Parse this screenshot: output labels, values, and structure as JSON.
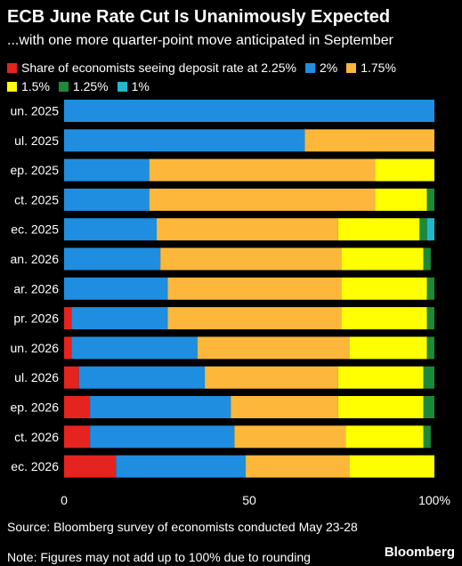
{
  "title": "ECB June Rate Cut Is Unanimously Expected",
  "subtitle": "...with one more quarter-point move anticipated in September",
  "legend": [
    {
      "label": "Share of economists seeing deposit rate at 2.25%",
      "color": "#e5231f"
    },
    {
      "label": "2%",
      "color": "#1f8ee0"
    },
    {
      "label": "1.75%",
      "color": "#fdb73a"
    },
    {
      "label": "1.5%",
      "color": "#ffff00"
    },
    {
      "label": "1.25%",
      "color": "#1c8a3a"
    },
    {
      "label": "1%",
      "color": "#22b8cc"
    }
  ],
  "chart_data": {
    "type": "bar",
    "orientation": "horizontal",
    "stacked": true,
    "categories": [
      "un. 2025",
      "ul. 2025",
      "ep. 2025",
      "ct. 2025",
      "ec. 2025",
      "an. 2026",
      "ar. 2026",
      "pr. 2026",
      "un. 2026",
      "ul. 2026",
      "ep. 2026",
      "ct. 2026",
      "ec. 2026"
    ],
    "series": [
      {
        "name": "Share of economists seeing deposit rate at 2.25%",
        "color": "#e5231f",
        "values": [
          0,
          0,
          0,
          0,
          0,
          0,
          0,
          2,
          2,
          4,
          7,
          7,
          14
        ]
      },
      {
        "name": "2%",
        "color": "#1f8ee0",
        "values": [
          100,
          65,
          23,
          23,
          25,
          26,
          28,
          26,
          34,
          34,
          38,
          39,
          35
        ]
      },
      {
        "name": "1.75%",
        "color": "#fdb73a",
        "values": [
          0,
          35,
          61,
          61,
          49,
          49,
          47,
          47,
          41,
          36,
          29,
          30,
          28
        ]
      },
      {
        "name": "1.5%",
        "color": "#ffff00",
        "values": [
          0,
          0,
          16,
          14,
          22,
          22,
          23,
          23,
          21,
          23,
          23,
          21,
          23
        ]
      },
      {
        "name": "1.25%",
        "color": "#1c8a3a",
        "values": [
          0,
          0,
          0,
          2,
          2,
          2,
          2,
          2,
          2,
          3,
          3,
          2,
          0
        ]
      },
      {
        "name": "1%",
        "color": "#22b8cc",
        "values": [
          0,
          0,
          0,
          0,
          2,
          0,
          0,
          0,
          0,
          0,
          0,
          0,
          0
        ]
      }
    ],
    "x_ticks": [
      "0",
      "50",
      "100%"
    ],
    "xlim": [
      0,
      100
    ],
    "grid": false
  },
  "source": "Source: Bloomberg survey of economists conducted May 23-28",
  "note": "Note: Figures may not add up to 100% due to rounding",
  "brand": "Bloomberg"
}
